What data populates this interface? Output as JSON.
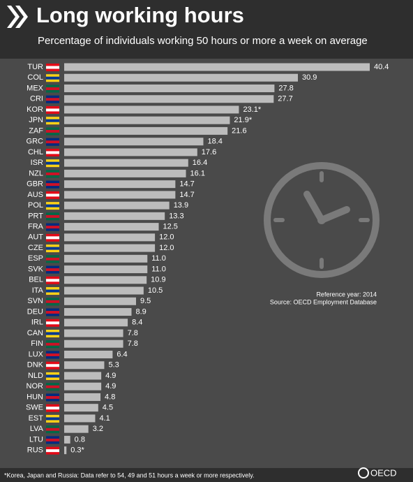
{
  "chart_data": {
    "type": "bar",
    "orientation": "horizontal",
    "title": "Long working hours",
    "subtitle": "Percentage of individuals working 50 hours or more a week on average",
    "categories": [
      "TUR",
      "COL",
      "MEX",
      "CRI",
      "KOR",
      "JPN",
      "ZAF",
      "GRC",
      "CHL",
      "ISR",
      "NZL",
      "GBR",
      "AUS",
      "POL",
      "PRT",
      "FRA",
      "AUT",
      "CZE",
      "ESP",
      "SVK",
      "BEL",
      "ITA",
      "SVN",
      "DEU",
      "IRL",
      "CAN",
      "FIN",
      "LUX",
      "DNK",
      "NLD",
      "NOR",
      "HUN",
      "SWE",
      "EST",
      "LVA",
      "LTU",
      "RUS"
    ],
    "values": [
      40.4,
      30.9,
      27.8,
      27.7,
      23.1,
      21.9,
      21.6,
      18.4,
      17.6,
      16.4,
      16.1,
      14.7,
      14.7,
      13.9,
      13.3,
      12.5,
      12.0,
      12.0,
      11.0,
      11.0,
      10.9,
      10.5,
      9.5,
      8.9,
      8.4,
      7.8,
      7.8,
      6.4,
      5.3,
      4.9,
      4.9,
      4.8,
      4.5,
      4.1,
      3.2,
      0.8,
      0.3
    ],
    "value_labels": [
      "40.4",
      "30.9",
      "27.8",
      "27.7",
      "23.1*",
      "21.9*",
      "21.6",
      "18.4",
      "17.6",
      "16.4",
      "16.1",
      "14.7",
      "14.7",
      "13.9",
      "13.3",
      "12.5",
      "12.0",
      "12.0",
      "11.0",
      "11.0",
      "10.9",
      "10.5",
      "9.5",
      "8.9",
      "8.4",
      "7.8",
      "7.8",
      "6.4",
      "5.3",
      "4.9",
      "4.9",
      "4.8",
      "4.5",
      "4.1",
      "3.2",
      "0.8",
      "0.3*"
    ],
    "color": "#bcbcbc",
    "annotations": [
      "Reference year: 2014",
      "Source: OECD Employment Database"
    ],
    "footnote": "*Korea, Japan and Russia: Data refer to 54, 49 and 51 hours a week or more respectively.",
    "logo": "OECD"
  }
}
